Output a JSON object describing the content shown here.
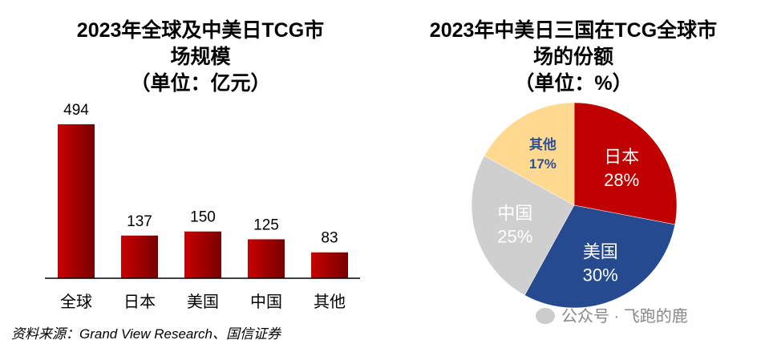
{
  "chart_data": [
    {
      "type": "bar",
      "title_lines": [
        "2023年全球及中美日TCG市",
        "场规模",
        "（单位：亿元）"
      ],
      "categories": [
        "全球",
        "日本",
        "美国",
        "中国",
        "其他"
      ],
      "values": [
        494,
        137,
        150,
        125,
        83
      ],
      "color": "#C00000",
      "grid": false,
      "legend": "none"
    },
    {
      "type": "pie",
      "title_lines": [
        "2023年中美日三国在TCG全球市",
        "场的份额",
        "（单位：%）"
      ],
      "slices": [
        {
          "label": "日本",
          "value": 28,
          "display": "28%",
          "color": "#C00000",
          "text_color": "#FFFFFF"
        },
        {
          "label": "美国",
          "value": 30,
          "display": "30%",
          "color": "#264A8F",
          "text_color": "#FFFFFF"
        },
        {
          "label": "中国",
          "value": 25,
          "display": "25%",
          "color": "#CFCFCF",
          "text_color": "#FFFFFF"
        },
        {
          "label": "其他",
          "value": 17,
          "display": "17%",
          "color": "#FFD990",
          "text_color": "#2E4E96"
        }
      ],
      "start": "top",
      "direction": "clockwise"
    }
  ],
  "source": "资料来源：Grand View Research、国信证券",
  "watermark": "公众号 · 飞跑的鹿"
}
